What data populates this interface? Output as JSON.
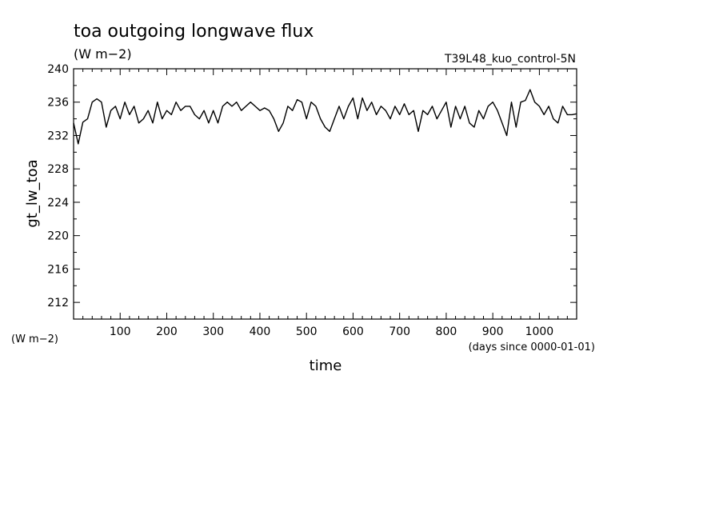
{
  "chart_data": {
    "type": "line",
    "title": "toa outgoing longwave flux",
    "subtitle": "(W m−2)",
    "run_label": "T39L48_kuo_control-5N",
    "ylabel": "gt_lw_toa",
    "yunits": "(W m−2)",
    "xlabel": "time",
    "xunits": "(days since 0000-01-01)",
    "xlim": [
      0,
      1080
    ],
    "ylim": [
      210,
      240
    ],
    "x_ticks": [
      100,
      200,
      300,
      400,
      500,
      600,
      700,
      800,
      900,
      1000
    ],
    "y_ticks": [
      212,
      216,
      220,
      224,
      228,
      232,
      236,
      240
    ],
    "grid": false,
    "series": [
      {
        "color": "#000000",
        "x": [
          0,
          10,
          20,
          30,
          40,
          50,
          60,
          70,
          80,
          90,
          100,
          110,
          120,
          130,
          140,
          150,
          160,
          170,
          180,
          190,
          200,
          210,
          220,
          230,
          240,
          250,
          260,
          270,
          280,
          290,
          300,
          310,
          320,
          330,
          340,
          350,
          360,
          370,
          380,
          390,
          400,
          410,
          420,
          430,
          440,
          450,
          460,
          470,
          480,
          490,
          500,
          510,
          520,
          530,
          540,
          550,
          560,
          570,
          580,
          590,
          600,
          610,
          620,
          630,
          640,
          650,
          660,
          670,
          680,
          690,
          700,
          710,
          720,
          730,
          740,
          750,
          760,
          770,
          780,
          790,
          800,
          810,
          820,
          830,
          840,
          850,
          860,
          870,
          880,
          890,
          900,
          910,
          920,
          930,
          940,
          950,
          960,
          970,
          980,
          990,
          1000,
          1010,
          1020,
          1030,
          1040,
          1050,
          1060,
          1070,
          1080
        ],
        "y": [
          233.5,
          231,
          233.6,
          234,
          236,
          236.4,
          236,
          233,
          235,
          235.5,
          234,
          236,
          234.5,
          235.5,
          233.5,
          234,
          235,
          233.5,
          236,
          234,
          235,
          234.5,
          236,
          235,
          235.5,
          235.5,
          234.5,
          234,
          235,
          233.5,
          235,
          233.5,
          235.5,
          236,
          235.5,
          236,
          235,
          235.5,
          236,
          235.5,
          235,
          235.3,
          235,
          234,
          232.5,
          233.5,
          235.5,
          235,
          236.3,
          236,
          234,
          236,
          235.5,
          234,
          233,
          232.5,
          234,
          235.5,
          234,
          235.5,
          236.5,
          234,
          236.5,
          235,
          236,
          234.5,
          235.5,
          235,
          234,
          235.5,
          234.5,
          235.8,
          234.5,
          235,
          232.5,
          235,
          234.5,
          235.5,
          234,
          235,
          236,
          233,
          235.5,
          234,
          235.5,
          233.5,
          233,
          235,
          234,
          235.5,
          236,
          235,
          233.5,
          232,
          236,
          233,
          236,
          236.2,
          237.5,
          236,
          235.5,
          234.5,
          235.5,
          234,
          233.5,
          235.5,
          234.5,
          234.5,
          234.6
        ]
      }
    ]
  }
}
